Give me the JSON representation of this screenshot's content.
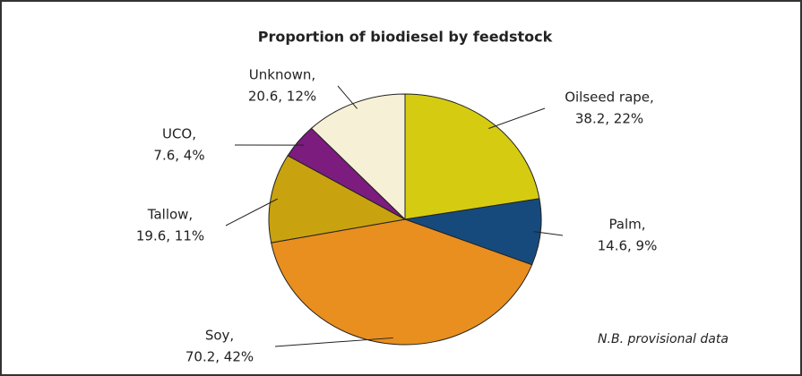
{
  "chart_data": {
    "type": "pie",
    "title": "Proportion of biodiesel by feedstock",
    "categories": [
      "Oilseed rape,",
      "Palm,",
      "Soy,",
      "Tallow,",
      "UCO,",
      "Unknown,"
    ],
    "values": [
      38.2,
      14.6,
      70.2,
      19.6,
      7.6,
      20.6
    ],
    "value_labels": [
      "38.2, 22%",
      "14.6, 9%",
      "70.2, 42%",
      "19.6, 11%",
      "7.6, 4%",
      "20.6, 12%"
    ],
    "colors": [
      "#d5cc12",
      "#174a7c",
      "#e88f1f",
      "#c9a20f",
      "#7b1c7e",
      "#f6f0d6"
    ],
    "annotation": "N.B. provisional data"
  }
}
